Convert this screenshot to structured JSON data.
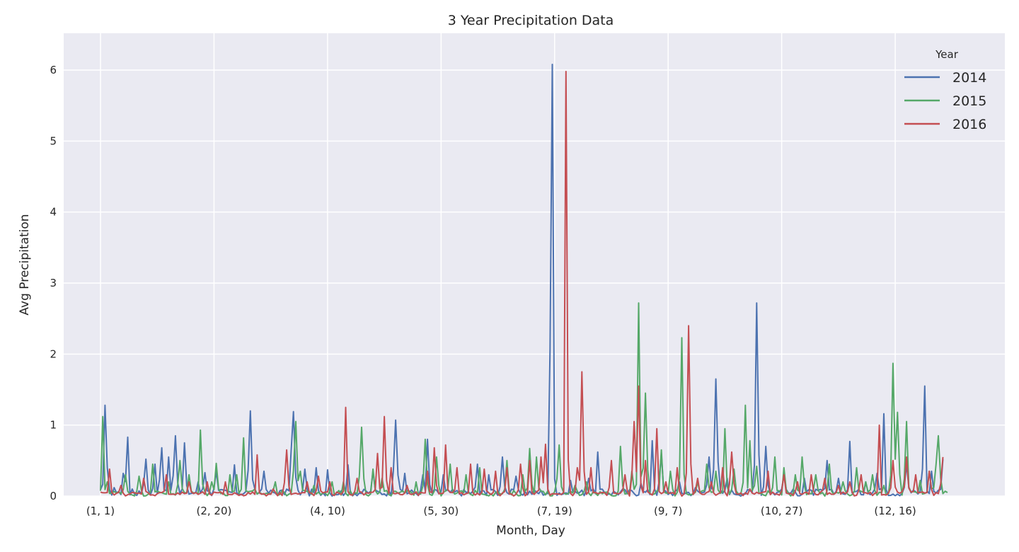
{
  "chart_data": {
    "type": "line",
    "title": "3 Year Precipitation Data",
    "xlabel": "Month, Day",
    "ylabel": "Avg Precipitation",
    "ylim": [
      0,
      6.5
    ],
    "yticks": [
      0,
      1,
      2,
      3,
      4,
      5,
      6
    ],
    "x_day_range": [
      1,
      365
    ],
    "xticks": [
      {
        "day": 1,
        "label": "(1, 1)"
      },
      {
        "day": 51,
        "label": "(2, 20)"
      },
      {
        "day": 101,
        "label": "(4, 10)"
      },
      {
        "day": 151,
        "label": "(5, 30)"
      },
      {
        "day": 201,
        "label": "(7, 19)"
      },
      {
        "day": 251,
        "label": "(9, 7)"
      },
      {
        "day": 301,
        "label": "(10, 27)"
      },
      {
        "day": 351,
        "label": "(12, 16)"
      }
    ],
    "grid": true,
    "legend": {
      "title": "Year",
      "placement": "top-right"
    },
    "series": [
      {
        "name": "2014",
        "color": "#4c72b0",
        "base": 0.05,
        "peaks": [
          [
            3,
            1.28
          ],
          [
            4,
            0.4
          ],
          [
            7,
            0.12
          ],
          [
            11,
            0.32
          ],
          [
            13,
            0.83
          ],
          [
            15,
            0.1
          ],
          [
            21,
            0.52
          ],
          [
            25,
            0.45
          ],
          [
            28,
            0.68
          ],
          [
            31,
            0.55
          ],
          [
            34,
            0.85
          ],
          [
            38,
            0.75
          ],
          [
            44,
            0.2
          ],
          [
            47,
            0.33
          ],
          [
            52,
            0.35
          ],
          [
            60,
            0.44
          ],
          [
            67,
            1.2
          ],
          [
            73,
            0.35
          ],
          [
            85,
            0.65
          ],
          [
            86,
            1.19
          ],
          [
            91,
            0.38
          ],
          [
            96,
            0.4
          ],
          [
            101,
            0.37
          ],
          [
            110,
            0.44
          ],
          [
            121,
            0.35
          ],
          [
            131,
            1.07
          ],
          [
            135,
            0.32
          ],
          [
            143,
            0.3
          ],
          [
            145,
            0.8
          ],
          [
            152,
            0.3
          ],
          [
            167,
            0.45
          ],
          [
            172,
            0.3
          ],
          [
            178,
            0.55
          ],
          [
            184,
            0.28
          ],
          [
            200,
            6.08
          ],
          [
            208,
            0.22
          ],
          [
            216,
            0.25
          ],
          [
            220,
            0.62
          ],
          [
            231,
            0.1
          ],
          [
            239,
            0.18
          ],
          [
            244,
            0.78
          ],
          [
            248,
            0.6
          ],
          [
            256,
            0.2
          ],
          [
            263,
            0.12
          ],
          [
            269,
            0.55
          ],
          [
            272,
            1.65
          ],
          [
            277,
            0.25
          ],
          [
            290,
            2.72
          ],
          [
            294,
            0.7
          ],
          [
            302,
            0.3
          ],
          [
            311,
            0.25
          ],
          [
            321,
            0.5
          ],
          [
            326,
            0.25
          ],
          [
            331,
            0.77
          ],
          [
            338,
            0.2
          ],
          [
            343,
            0.32
          ],
          [
            346,
            1.16
          ],
          [
            356,
            0.45
          ],
          [
            364,
            1.55
          ],
          [
            367,
            0.35
          ],
          [
            372,
            0.52
          ]
        ]
      },
      {
        "name": "2015",
        "color": "#55a868",
        "base": 0.04,
        "peaks": [
          [
            2,
            1.12
          ],
          [
            4,
            0.2
          ],
          [
            12,
            0.3
          ],
          [
            18,
            0.28
          ],
          [
            24,
            0.45
          ],
          [
            31,
            0.2
          ],
          [
            36,
            0.5
          ],
          [
            40,
            0.3
          ],
          [
            45,
            0.93
          ],
          [
            50,
            0.2
          ],
          [
            52,
            0.46
          ],
          [
            58,
            0.3
          ],
          [
            61,
            0.3
          ],
          [
            64,
            0.82
          ],
          [
            69,
            0.1
          ],
          [
            78,
            0.2
          ],
          [
            87,
            1.05
          ],
          [
            89,
            0.35
          ],
          [
            95,
            0.15
          ],
          [
            103,
            0.2
          ],
          [
            108,
            0.2
          ],
          [
            116,
            0.97
          ],
          [
            121,
            0.38
          ],
          [
            125,
            0.25
          ],
          [
            140,
            0.2
          ],
          [
            144,
            0.8
          ],
          [
            149,
            0.55
          ],
          [
            155,
            0.45
          ],
          [
            162,
            0.3
          ],
          [
            168,
            0.4
          ],
          [
            180,
            0.5
          ],
          [
            187,
            0.3
          ],
          [
            190,
            0.67
          ],
          [
            193,
            0.55
          ],
          [
            203,
            0.72
          ],
          [
            210,
            0.15
          ],
          [
            215,
            0.2
          ],
          [
            230,
            0.7
          ],
          [
            235,
            0.35
          ],
          [
            238,
            2.72
          ],
          [
            241,
            1.45
          ],
          [
            248,
            0.65
          ],
          [
            252,
            0.35
          ],
          [
            257,
            2.23
          ],
          [
            264,
            0.2
          ],
          [
            268,
            0.45
          ],
          [
            272,
            0.35
          ],
          [
            276,
            0.95
          ],
          [
            280,
            0.38
          ],
          [
            285,
            1.28
          ],
          [
            287,
            0.78
          ],
          [
            290,
            0.42
          ],
          [
            298,
            0.55
          ],
          [
            302,
            0.4
          ],
          [
            307,
            0.3
          ],
          [
            310,
            0.55
          ],
          [
            316,
            0.3
          ],
          [
            322,
            0.45
          ],
          [
            328,
            0.2
          ],
          [
            334,
            0.4
          ],
          [
            338,
            0.2
          ],
          [
            341,
            0.3
          ],
          [
            346,
            0.15
          ],
          [
            350,
            1.87
          ],
          [
            352,
            1.18
          ],
          [
            356,
            1.05
          ],
          [
            362,
            0.22
          ],
          [
            366,
            0.35
          ],
          [
            369,
            0.45
          ],
          [
            370,
            0.85
          ],
          [
            374,
            0.05
          ]
        ]
      },
      {
        "name": "2016",
        "color": "#c44e52",
        "base": 0.03,
        "peaks": [
          [
            5,
            0.38
          ],
          [
            10,
            0.15
          ],
          [
            20,
            0.25
          ],
          [
            30,
            0.3
          ],
          [
            40,
            0.2
          ],
          [
            48,
            0.2
          ],
          [
            56,
            0.2
          ],
          [
            70,
            0.58
          ],
          [
            77,
            0.1
          ],
          [
            83,
            0.65
          ],
          [
            92,
            0.2
          ],
          [
            97,
            0.28
          ],
          [
            102,
            0.2
          ],
          [
            109,
            1.25
          ],
          [
            114,
            0.25
          ],
          [
            123,
            0.6
          ],
          [
            126,
            1.12
          ],
          [
            129,
            0.4
          ],
          [
            136,
            0.15
          ],
          [
            145,
            0.35
          ],
          [
            148,
            0.68
          ],
          [
            153,
            0.72
          ],
          [
            158,
            0.4
          ],
          [
            164,
            0.45
          ],
          [
            170,
            0.38
          ],
          [
            175,
            0.35
          ],
          [
            180,
            0.4
          ],
          [
            186,
            0.45
          ],
          [
            190,
            0.5
          ],
          [
            195,
            0.55
          ],
          [
            197,
            0.73
          ],
          [
            206,
            5.98
          ],
          [
            211,
            0.4
          ],
          [
            213,
            1.75
          ],
          [
            217,
            0.4
          ],
          [
            226,
            0.5
          ],
          [
            232,
            0.3
          ],
          [
            236,
            1.05
          ],
          [
            238,
            1.55
          ],
          [
            241,
            0.5
          ],
          [
            246,
            0.95
          ],
          [
            250,
            0.2
          ],
          [
            255,
            0.4
          ],
          [
            260,
            2.4
          ],
          [
            264,
            0.25
          ],
          [
            270,
            0.2
          ],
          [
            275,
            0.4
          ],
          [
            279,
            0.62
          ],
          [
            287,
            0.1
          ],
          [
            295,
            0.35
          ],
          [
            302,
            0.3
          ],
          [
            308,
            0.2
          ],
          [
            314,
            0.3
          ],
          [
            320,
            0.25
          ],
          [
            326,
            0.15
          ],
          [
            331,
            0.2
          ],
          [
            336,
            0.3
          ],
          [
            344,
            1.0
          ],
          [
            350,
            0.5
          ],
          [
            356,
            0.55
          ],
          [
            360,
            0.3
          ],
          [
            366,
            0.35
          ],
          [
            372,
            0.55
          ]
        ]
      }
    ]
  }
}
